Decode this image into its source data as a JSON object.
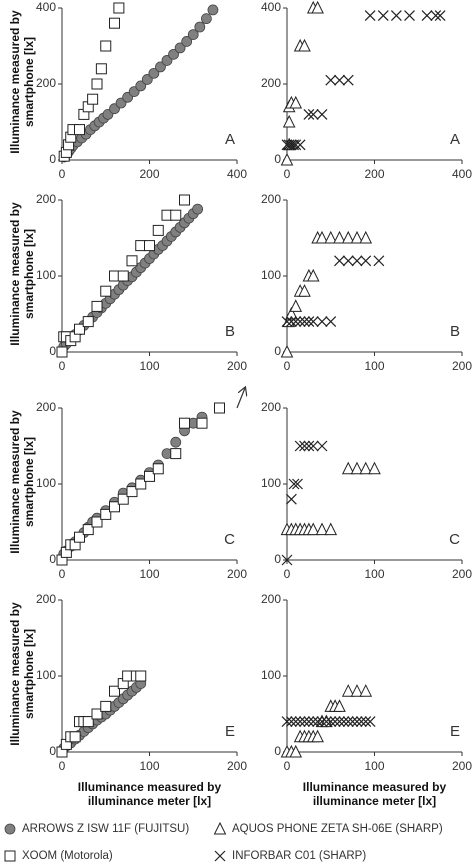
{
  "chart_data": [
    {
      "type": "scatter",
      "ylabel": "Illuminance measured by smartphone [lx]",
      "annotation": "A",
      "xlim": [
        0,
        400
      ],
      "ylim": [
        0,
        400
      ],
      "xticks": [
        0,
        200,
        400
      ],
      "yticks": [
        0,
        200,
        400
      ],
      "series": [
        {
          "name": "ARROWS Z ISW 11F (FUJITSU)",
          "marker": "circle",
          "color": "#808080",
          "x": [
            5,
            10,
            15,
            20,
            25,
            35,
            45,
            55,
            65,
            75,
            85,
            95,
            105,
            120,
            135,
            150,
            165,
            180,
            195,
            210,
            225,
            240,
            255,
            270,
            285,
            300,
            315,
            330,
            345
          ],
          "values": [
            8,
            15,
            22,
            30,
            38,
            48,
            58,
            68,
            80,
            90,
            100,
            110,
            120,
            135,
            150,
            165,
            180,
            195,
            212,
            228,
            245,
            262,
            278,
            295,
            312,
            330,
            350,
            372,
            395
          ]
        },
        {
          "name": "XOOM (Motorola)",
          "marker": "square",
          "color": "#222222",
          "x": [
            5,
            10,
            15,
            20,
            25,
            40,
            50,
            60,
            70,
            80,
            90,
            100,
            120,
            130
          ],
          "values": [
            10,
            20,
            40,
            60,
            80,
            80,
            120,
            140,
            160,
            200,
            240,
            300,
            360,
            400
          ]
        }
      ]
    },
    {
      "type": "scatter",
      "annotation": "A",
      "xlim": [
        0,
        400
      ],
      "ylim": [
        0,
        400
      ],
      "xticks": [
        0,
        200,
        400
      ],
      "yticks": [
        0,
        200,
        400
      ],
      "series": [
        {
          "name": "AQUOS PHONE ZETA SH-06E (SHARP)",
          "marker": "triangle",
          "color": "#222222",
          "x": [
            0,
            5,
            5,
            5,
            10,
            20,
            30,
            40,
            60,
            70
          ],
          "values": [
            0,
            40,
            100,
            140,
            150,
            150,
            300,
            300,
            400,
            400
          ]
        },
        {
          "name": "INFORBAR C01 (SHARP)",
          "marker": "cross",
          "color": "#222222",
          "x": [
            0,
            5,
            10,
            15,
            20,
            30,
            50,
            60,
            80,
            100,
            120,
            140,
            190,
            220,
            250,
            280,
            320,
            340,
            350
          ],
          "values": [
            40,
            40,
            40,
            40,
            40,
            40,
            120,
            120,
            120,
            210,
            210,
            210,
            380,
            380,
            380,
            380,
            380,
            380,
            380
          ]
        }
      ]
    },
    {
      "type": "scatter",
      "ylabel": "Illuminance measured by smartphone [lx]",
      "annotation": "B",
      "xlim": [
        0,
        200
      ],
      "ylim": [
        0,
        200
      ],
      "xticks": [
        0,
        100,
        200
      ],
      "yticks": [
        0,
        100,
        200
      ],
      "series": [
        {
          "marker": "circle",
          "color": "#808080",
          "x": [
            2,
            5,
            10,
            15,
            20,
            25,
            30,
            35,
            40,
            45,
            50,
            55,
            60,
            65,
            70,
            75,
            80,
            85,
            90,
            95,
            100,
            105,
            110,
            115,
            120,
            125,
            130,
            135,
            140,
            145,
            150,
            155
          ],
          "values": [
            7,
            11,
            17,
            23,
            29,
            35,
            40,
            46,
            52,
            58,
            64,
            70,
            76,
            82,
            88,
            94,
            99,
            105,
            111,
            117,
            123,
            129,
            135,
            140,
            146,
            152,
            158,
            164,
            170,
            176,
            182,
            188
          ]
        },
        {
          "marker": "square",
          "color": "#222222",
          "x": [
            0,
            2,
            5,
            10,
            15,
            20,
            30,
            40,
            50,
            60,
            70,
            80,
            90,
            100,
            110,
            120,
            130,
            140
          ],
          "values": [
            0,
            20,
            20,
            15,
            20,
            30,
            40,
            60,
            80,
            100,
            100,
            120,
            140,
            140,
            160,
            180,
            180,
            200
          ]
        }
      ]
    },
    {
      "type": "scatter",
      "annotation": "B",
      "xlim": [
        0,
        200
      ],
      "ylim": [
        0,
        200
      ],
      "xticks": [
        0,
        100,
        200
      ],
      "yticks": [
        0,
        100,
        200
      ],
      "series": [
        {
          "marker": "triangle",
          "color": "#222222",
          "x": [
            0,
            2,
            5,
            10,
            15,
            20,
            25,
            30,
            35,
            40,
            50,
            60,
            70,
            80,
            90
          ],
          "values": [
            0,
            40,
            50,
            60,
            80,
            80,
            100,
            100,
            150,
            150,
            150,
            150,
            150,
            150,
            150
          ]
        },
        {
          "marker": "cross",
          "color": "#222222",
          "x": [
            0,
            5,
            10,
            15,
            20,
            25,
            30,
            40,
            50,
            60,
            70,
            80,
            90,
            105
          ],
          "values": [
            40,
            40,
            40,
            40,
            40,
            40,
            40,
            40,
            40,
            120,
            120,
            120,
            120,
            120
          ]
        }
      ]
    },
    {
      "type": "scatter",
      "ylabel": "Illuminance measured by smartphone [lx]",
      "annotation": "C",
      "xlim": [
        0,
        200
      ],
      "ylim": [
        0,
        200
      ],
      "xticks": [
        0,
        100,
        200
      ],
      "yticks": [
        0,
        100,
        200
      ],
      "series": [
        {
          "marker": "circle",
          "color": "#808080",
          "x": [
            2,
            5,
            10,
            15,
            20,
            25,
            30,
            35,
            40,
            50,
            60,
            70,
            80,
            90,
            100,
            110,
            120,
            130,
            140,
            150,
            160
          ],
          "values": [
            8,
            12,
            18,
            24,
            30,
            36,
            43,
            50,
            55,
            65,
            76,
            88,
            95,
            105,
            115,
            125,
            140,
            155,
            170,
            180,
            188
          ]
        },
        {
          "marker": "square",
          "color": "#222222",
          "x": [
            0,
            5,
            10,
            15,
            20,
            30,
            40,
            50,
            60,
            70,
            80,
            90,
            100,
            110,
            130,
            140,
            160,
            180
          ],
          "values": [
            0,
            10,
            20,
            20,
            30,
            40,
            50,
            60,
            70,
            80,
            90,
            100,
            110,
            120,
            140,
            180,
            180,
            200
          ]
        }
      ]
    },
    {
      "type": "scatter",
      "annotation": "C",
      "xlim": [
        0,
        200
      ],
      "ylim": [
        0,
        200
      ],
      "xticks": [
        0,
        100,
        200
      ],
      "yticks": [
        0,
        100,
        200
      ],
      "series": [
        {
          "marker": "triangle",
          "color": "#222222",
          "x": [
            0,
            5,
            10,
            15,
            20,
            25,
            30,
            40,
            50,
            70,
            80,
            90,
            100
          ],
          "values": [
            40,
            40,
            40,
            40,
            40,
            40,
            40,
            40,
            40,
            120,
            120,
            120,
            120
          ]
        },
        {
          "marker": "cross",
          "color": "#222222",
          "x": [
            0,
            5,
            8,
            12,
            15,
            20,
            25,
            30,
            40
          ],
          "values": [
            0,
            80,
            100,
            100,
            150,
            150,
            150,
            150,
            150
          ]
        }
      ]
    },
    {
      "type": "scatter",
      "ylabel": "Illuminance measured by smartphone [lx]",
      "xlabel": "Illuminance measured by illuminance meter [lx]",
      "annotation": "E",
      "xlim": [
        0,
        200
      ],
      "ylim": [
        0,
        200
      ],
      "xticks": [
        0,
        100,
        200
      ],
      "yticks": [
        0,
        100,
        200
      ],
      "series": [
        {
          "marker": "circle",
          "color": "#808080",
          "x": [
            2,
            5,
            10,
            15,
            20,
            25,
            30,
            35,
            40,
            45,
            50,
            55,
            60,
            65,
            70,
            75,
            80,
            85,
            90
          ],
          "values": [
            5,
            8,
            12,
            17,
            22,
            27,
            32,
            37,
            42,
            46,
            50,
            55,
            60,
            65,
            70,
            75,
            80,
            85,
            90
          ]
        },
        {
          "marker": "square",
          "color": "#222222",
          "x": [
            0,
            5,
            10,
            15,
            20,
            25,
            30,
            40,
            50,
            60,
            70,
            75,
            85,
            90
          ],
          "values": [
            0,
            10,
            20,
            20,
            40,
            40,
            40,
            50,
            60,
            80,
            90,
            100,
            100,
            100
          ]
        }
      ]
    },
    {
      "type": "scatter",
      "xlabel": "Illuminance measured by illuminance meter [lx]",
      "annotation": "E",
      "xlim": [
        0,
        200
      ],
      "ylim": [
        0,
        200
      ],
      "xticks": [
        0,
        100,
        200
      ],
      "yticks": [
        0,
        100,
        200
      ],
      "series": [
        {
          "marker": "triangle",
          "color": "#222222",
          "x": [
            0,
            5,
            10,
            15,
            20,
            25,
            30,
            35,
            40,
            45,
            50,
            55,
            60,
            70,
            80,
            90
          ],
          "values": [
            0,
            0,
            0,
            20,
            20,
            20,
            20,
            20,
            40,
            40,
            60,
            60,
            60,
            80,
            80,
            80
          ]
        },
        {
          "marker": "cross",
          "color": "#222222",
          "x": [
            0,
            5,
            10,
            15,
            20,
            25,
            30,
            35,
            40,
            45,
            50,
            55,
            60,
            65,
            70,
            75,
            80,
            85,
            90,
            95
          ],
          "values": [
            40,
            40,
            40,
            40,
            40,
            40,
            40,
            40,
            40,
            40,
            40,
            40,
            40,
            40,
            40,
            40,
            40,
            40,
            40,
            40
          ]
        }
      ]
    }
  ]
}
